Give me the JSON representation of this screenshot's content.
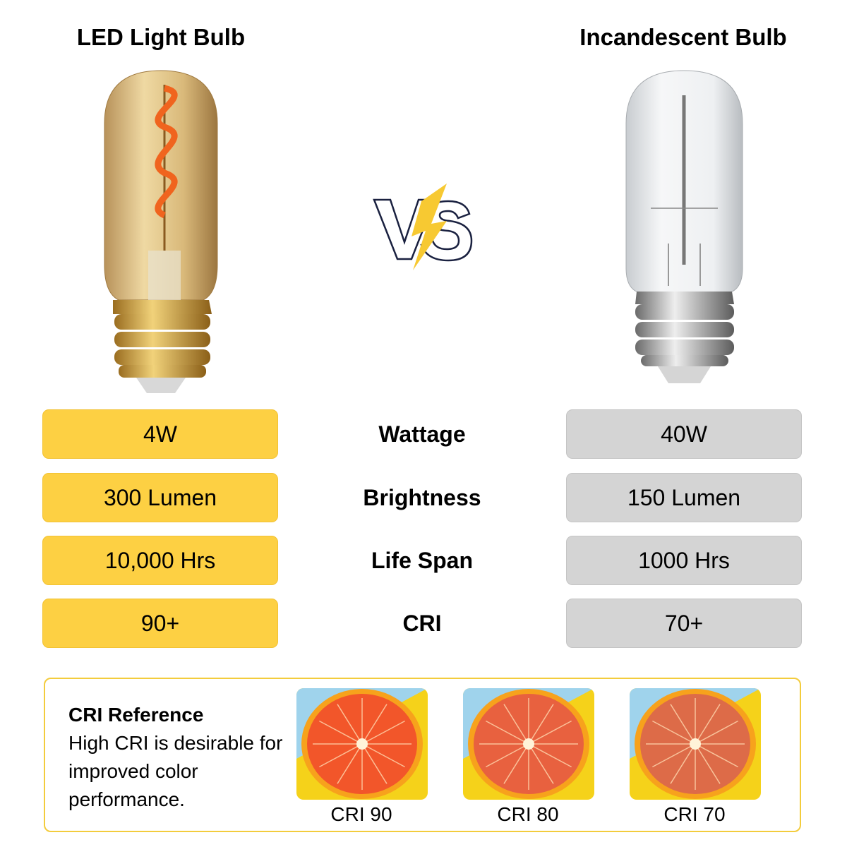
{
  "left": {
    "title": "LED Light Bulb",
    "values": [
      "4W",
      "300 Lumen",
      "10,000 Hrs",
      "90+"
    ],
    "color": "#fdd043"
  },
  "right": {
    "title": "Incandescent Bulb",
    "values": [
      "40W",
      "150 Lumen",
      "1000 Hrs",
      "70+"
    ],
    "color": "#d4d4d4"
  },
  "vs_logo": "VS",
  "metrics": [
    "Wattage",
    "Brightness",
    "Life Span",
    "CRI"
  ],
  "cri_reference": {
    "title": "CRI Reference",
    "description": "High CRI is desirable for improved color performance.",
    "samples": [
      {
        "label": "CRI 90",
        "color": "#f2562a"
      },
      {
        "label": "CRI 80",
        "color": "#e8613f"
      },
      {
        "label": "CRI 70",
        "color": "#dd6b48"
      }
    ]
  }
}
